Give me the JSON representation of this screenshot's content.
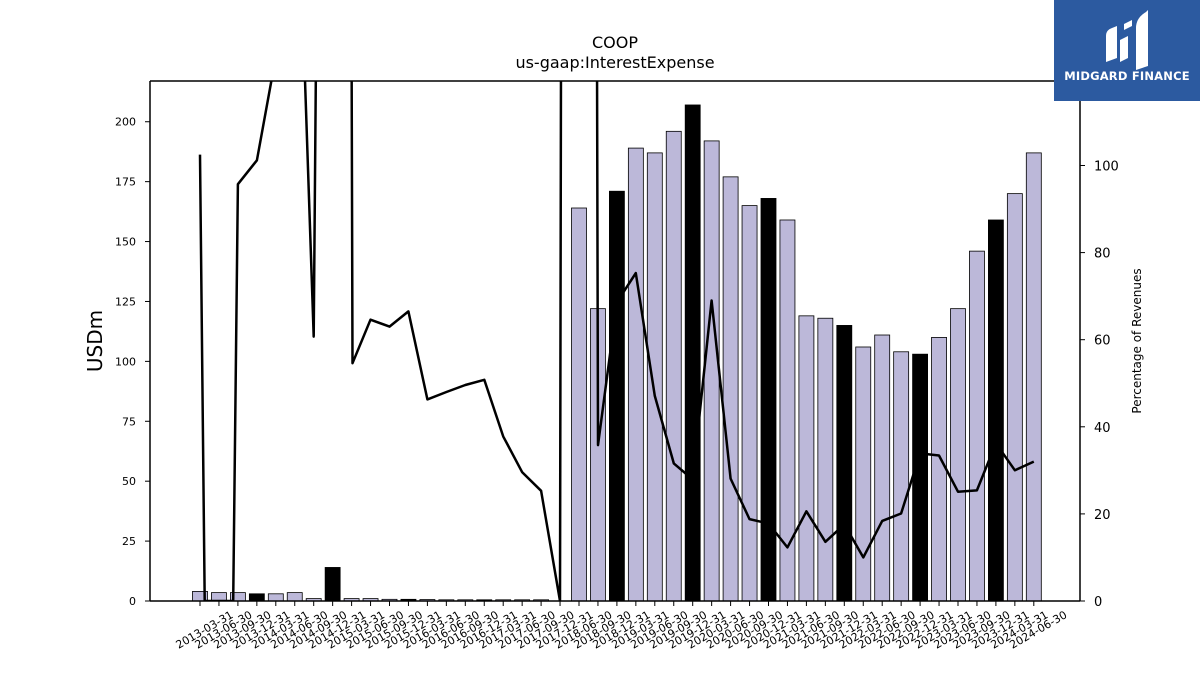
{
  "chart_data": {
    "type": "bar",
    "title": "COOP",
    "subtitle": "us-gaap:InterestExpense",
    "ylabel": "USDm",
    "y2label": "Percentage of Revenues",
    "ylim": [
      0,
      217
    ],
    "y2lim": [
      0,
      119.4
    ],
    "yticks": [
      0,
      25,
      50,
      75,
      100,
      125,
      150,
      175,
      200
    ],
    "y2ticks": [
      0,
      20,
      40,
      60,
      80,
      100
    ],
    "categories": [
      "2013-03-31",
      "2013-06-30",
      "2013-09-30",
      "2013-12-31",
      "2014-03-31",
      "2014-06-30",
      "2014-09-30",
      "2014-12-31",
      "2015-03-31",
      "2015-06-30",
      "2015-09-30",
      "2015-12-31",
      "2016-03-31",
      "2016-06-30",
      "2016-09-30",
      "2016-12-31",
      "2017-03-31",
      "2017-06-30",
      "2017-09-30",
      "2017-12-31",
      "2018-06-30",
      "2018-09-30",
      "2018-12-31",
      "2019-03-31",
      "2019-06-30",
      "2019-09-30",
      "2019-12-31",
      "2020-03-31",
      "2020-06-30",
      "2020-09-30",
      "2020-12-31",
      "2021-03-31",
      "2021-06-30",
      "2021-09-30",
      "2021-12-31",
      "2022-03-31",
      "2022-06-30",
      "2022-09-30",
      "2022-12-31",
      "2023-03-31",
      "2023-06-30",
      "2023-09-30",
      "2023-12-31",
      "2024-03-31",
      "2024-06-30"
    ],
    "series": [
      {
        "type": "bar",
        "values": [
          4,
          3.5,
          3.5,
          3,
          3,
          3.5,
          1,
          14,
          1,
          1,
          0.7,
          0.7,
          0.6,
          0.5,
          0.5,
          0.5,
          0.5,
          0.5,
          0.5,
          0,
          164,
          122,
          171,
          189,
          187,
          196,
          207,
          192,
          177,
          165,
          168,
          159,
          119,
          118,
          115,
          106,
          111,
          104,
          103,
          110,
          122,
          146,
          159,
          170,
          187
        ],
        "highlight": [
          false,
          false,
          false,
          true,
          false,
          false,
          false,
          true,
          false,
          false,
          false,
          true,
          false,
          false,
          false,
          true,
          false,
          false,
          false,
          true,
          false,
          false,
          true,
          false,
          false,
          false,
          true,
          false,
          false,
          false,
          true,
          false,
          false,
          false,
          true,
          false,
          false,
          false,
          true,
          false,
          false,
          false,
          true,
          false,
          false
        ],
        "color": "#bcb8d9",
        "highlight_color": "#000000"
      },
      {
        "type": "line",
        "axis": "right",
        "color": "#000000",
        "points": [
          [
            0.0,
            102.5
          ],
          [
            0.25,
            0
          ],
          [
            1.75,
            0
          ],
          [
            2.0,
            95.7
          ],
          [
            3.0,
            101.2
          ],
          [
            4.0,
            125
          ],
          [
            5.5,
            125
          ],
          [
            6.0,
            60.7
          ],
          [
            6.12,
            125
          ],
          [
            8.0,
            125
          ],
          [
            8.05,
            54.6
          ],
          [
            9.0,
            64.6
          ],
          [
            10.0,
            63.0
          ],
          [
            11.0,
            66.5
          ],
          [
            12.0,
            46.3
          ],
          [
            13.0,
            48.0
          ],
          [
            14.0,
            49.6
          ],
          [
            15.0,
            50.8
          ],
          [
            16.0,
            37.8
          ],
          [
            17.0,
            29.6
          ],
          [
            18.0,
            25.3
          ],
          [
            19.0,
            0
          ],
          [
            19.05,
            125
          ],
          [
            20.95,
            125
          ],
          [
            21.0,
            35.8
          ],
          [
            22.0,
            68.6
          ],
          [
            23.0,
            75.3
          ],
          [
            24.0,
            47.1
          ],
          [
            25.0,
            31.6
          ],
          [
            26.0,
            27.9
          ],
          [
            27.0,
            69.0
          ],
          [
            28.0,
            28.1
          ],
          [
            29.0,
            18.8
          ],
          [
            30.0,
            17.8
          ],
          [
            31.0,
            12.3
          ],
          [
            32.0,
            20.6
          ],
          [
            33.0,
            13.6
          ],
          [
            34.0,
            17.6
          ],
          [
            35.0,
            10.0
          ],
          [
            36.0,
            18.4
          ],
          [
            37.0,
            20.1
          ],
          [
            38.0,
            33.9
          ],
          [
            39.0,
            33.4
          ],
          [
            40.0,
            25.1
          ],
          [
            41.0,
            25.4
          ],
          [
            42.0,
            36.2
          ],
          [
            43.0,
            30.0
          ],
          [
            44.0,
            32.0
          ]
        ]
      }
    ],
    "grid": false,
    "legend": "none"
  },
  "logo": {
    "text": "MIDGARD FINANCE",
    "background": "#2c5aa0",
    "icon": "midgard-logo-icon"
  }
}
